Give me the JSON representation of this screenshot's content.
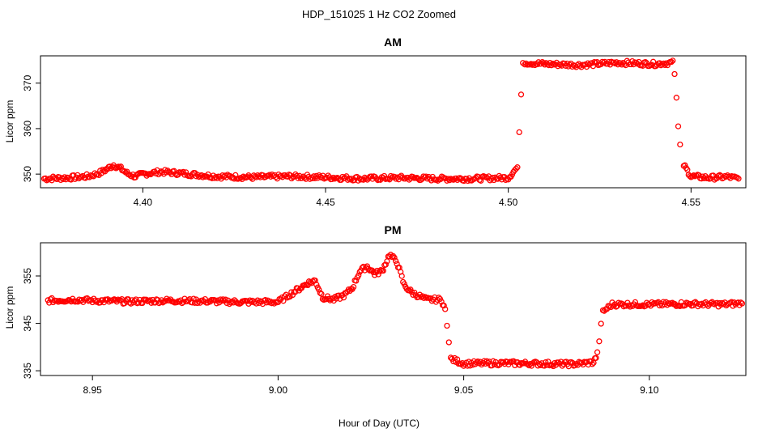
{
  "chart_data": {
    "type": "scatter",
    "title": "HDP_151025  1 Hz CO2 Zoomed",
    "xlabel": "Hour of Day (UTC)",
    "colors": {
      "points": "#ff0000",
      "axes": "#000000"
    },
    "panels": [
      {
        "id": "am",
        "title": "AM",
        "ylabel": "Licor ppm",
        "xlim": [
          4.372,
          4.565
        ],
        "ylim": [
          347,
          376
        ],
        "xticks": [
          4.4,
          4.45,
          4.5,
          4.55
        ],
        "xtick_labels": [
          "4.40",
          "4.45",
          "4.50",
          "4.55"
        ],
        "yticks": [
          350,
          360,
          370
        ],
        "ytick_labels": [
          "350",
          "360",
          "370"
        ],
        "marker": "open-circle",
        "series": [
          {
            "x": [
              4.373,
              4.38,
              4.385,
              4.388,
              4.39,
              4.392,
              4.394,
              4.396,
              4.398,
              4.4,
              4.405,
              4.41,
              4.42,
              4.43,
              4.44,
              4.45,
              4.46,
              4.47,
              4.48,
              4.49,
              4.5,
              4.5025,
              4.503,
              4.5035,
              4.504,
              4.5045,
              4.51,
              4.52,
              4.53,
              4.54,
              4.545,
              4.5455,
              4.546,
              4.5465,
              4.547,
              4.548,
              4.55,
              4.555,
              4.56,
              4.563
            ],
            "y": [
              349.0,
              349.2,
              349.5,
              350.2,
              351.0,
              352.0,
              351.2,
              350.0,
              349.5,
              350.0,
              350.5,
              350.2,
              349.5,
              349.3,
              349.5,
              349.3,
              349.0,
              349.2,
              349.0,
              349.0,
              349.2,
              351.5,
              359.2,
              367.5,
              374.0,
              374.5,
              374.2,
              374.0,
              374.5,
              374.2,
              374.5,
              372.0,
              366.8,
              360.5,
              356.5,
              352.0,
              349.5,
              349.2,
              349.4,
              349.0
            ]
          }
        ]
      },
      {
        "id": "pm",
        "title": "PM",
        "ylabel": "Licor ppm",
        "xlim": [
          8.936,
          9.126
        ],
        "ylim": [
          334,
          362
        ],
        "xticks": [
          8.95,
          9.0,
          9.05,
          9.1
        ],
        "xtick_labels": [
          "8.95",
          "9.00",
          "9.05",
          "9.10"
        ],
        "yticks": [
          335,
          345,
          355
        ],
        "ytick_labels": [
          "335",
          "345",
          "355"
        ],
        "marker": "open-circle",
        "series": [
          {
            "x": [
              8.938,
              8.945,
              8.95,
              8.96,
              8.97,
              8.98,
              8.99,
              9.0,
              9.005,
              9.008,
              9.01,
              9.012,
              9.015,
              9.018,
              9.02,
              9.022,
              9.024,
              9.026,
              9.028,
              9.03,
              9.032,
              9.034,
              9.036,
              9.04,
              9.044,
              9.045,
              9.0455,
              9.046,
              9.0465,
              9.05,
              9.06,
              9.07,
              9.08,
              9.085,
              9.086,
              9.0865,
              9.087,
              9.0875,
              9.09,
              9.1,
              9.11,
              9.12,
              9.125
            ],
            "y": [
              349.8,
              350.0,
              349.8,
              349.6,
              349.8,
              349.7,
              349.5,
              349.5,
              352.0,
              353.5,
              354.0,
              350.5,
              350.0,
              351.0,
              352.5,
              356.0,
              357.0,
              355.5,
              356.0,
              359.5,
              358.0,
              353.0,
              351.5,
              350.0,
              350.0,
              348.0,
              344.5,
              341.0,
              337.5,
              336.5,
              336.6,
              336.5,
              336.4,
              336.8,
              338.5,
              341.5,
              344.5,
              347.5,
              349.0,
              349.0,
              349.1,
              349.0,
              349.2
            ]
          }
        ]
      }
    ]
  }
}
